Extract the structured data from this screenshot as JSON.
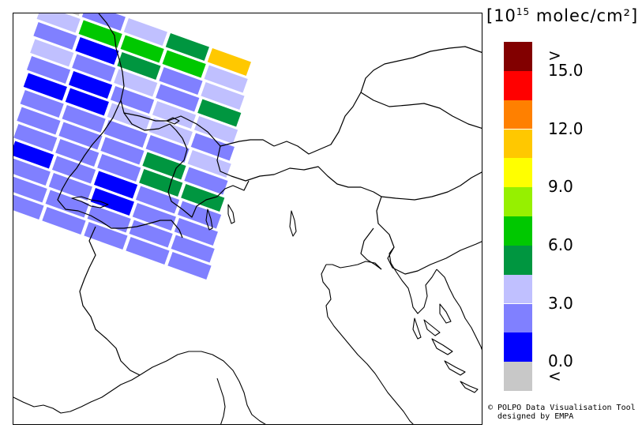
{
  "legend": {
    "title_base": "[10",
    "title_exp": "15",
    "title_rest": " molec/cm²]",
    "bins": [
      {
        "color": "#c8c8c8"
      },
      {
        "color": "#0000ff"
      },
      {
        "color": "#8080ff"
      },
      {
        "color": "#c0c0ff"
      },
      {
        "color": "#009640"
      },
      {
        "color": "#00c800"
      },
      {
        "color": "#96f000"
      },
      {
        "color": "#ffff00"
      },
      {
        "color": "#ffc800"
      },
      {
        "color": "#ff8000"
      },
      {
        "color": "#ff0000"
      },
      {
        "color": "#820000"
      }
    ],
    "labels": [
      {
        "text": "<",
        "boundary": -1
      },
      {
        "text": "0.0",
        "boundary": 0
      },
      {
        "text": "3.0",
        "boundary": 3
      },
      {
        "text": "6.0",
        "boundary": 6
      },
      {
        "text": "9.0",
        "boundary": 9
      },
      {
        "text": "12.0",
        "boundary": 12
      },
      {
        "text": "15.0",
        "boundary": 15
      },
      {
        "text": ">",
        "boundary": 17
      }
    ]
  },
  "credit": {
    "line1": "© POLPO Data Visualisation Tool",
    "line2": "designed by EMPA"
  },
  "swath": {
    "rows": [
      [
        "grey",
        "blue2",
        "light",
        "green1",
        "yellow"
      ],
      [
        "light",
        "green2",
        "green2",
        "green2",
        "light"
      ],
      [
        "blue2",
        "blue",
        "green1",
        "blue2",
        "light"
      ],
      [
        "light",
        "blue2",
        "light",
        "blue2",
        "green1"
      ],
      [
        "blue2",
        "blue",
        "blue2",
        "light",
        "light"
      ],
      [
        "blue",
        "blue",
        "light",
        "light",
        "blue2"
      ],
      [
        "blue2",
        "blue2",
        "blue2",
        "blue2",
        "light"
      ],
      [
        "blue2",
        "blue2",
        "blue2",
        "green1",
        "blue2"
      ],
      [
        "blue2",
        "blue2",
        "blue2",
        "green1",
        "green1"
      ],
      [
        "blue",
        "blue2",
        "blue",
        "blue2",
        "blue2"
      ],
      [
        "blue2",
        "blue2",
        "blue",
        "blue2",
        "blue2"
      ],
      [
        "blue2",
        "blue2",
        "blue2",
        "blue2",
        "blue2"
      ],
      [
        "blue2",
        "blue2",
        "blue2",
        "blue2",
        "blue2"
      ]
    ],
    "palette": {
      "grey": "#c8c8c8",
      "blue": "#0000ff",
      "blue2": "#8080ff",
      "light": "#c0c0ff",
      "green1": "#009640",
      "green2": "#00c800",
      "yellow": "#ffc800"
    }
  }
}
